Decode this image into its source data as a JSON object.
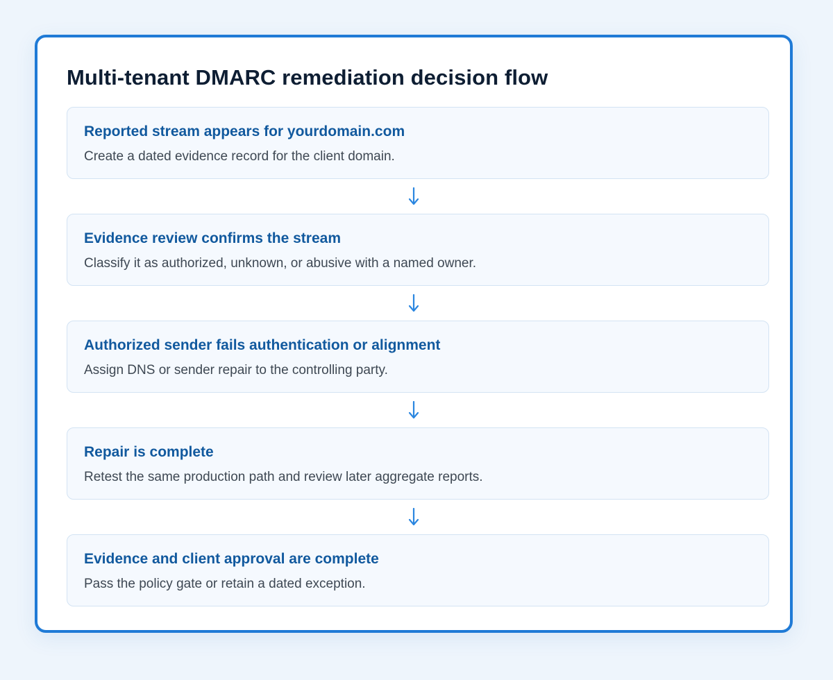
{
  "diagram": {
    "title": "Multi-tenant DMARC remediation decision flow",
    "steps": [
      {
        "title": "Reported stream appears for yourdomain.com",
        "description": "Create a dated evidence record for the client domain."
      },
      {
        "title": "Evidence review confirms the stream",
        "description": "Classify it as authorized, unknown, or abusive with a named owner."
      },
      {
        "title": "Authorized sender fails authentication or alignment",
        "description": "Assign DNS or sender repair to the controlling party."
      },
      {
        "title": "Repair is complete",
        "description": "Retest the same production path and review later aggregate reports."
      },
      {
        "title": "Evidence and client approval are complete",
        "description": "Pass the policy gate or retain a dated exception."
      }
    ],
    "colors": {
      "accent": "#1f7ad6",
      "step_title": "#11599e",
      "arrow": "#2a86e0"
    },
    "connector_icon": "arrow-down-icon"
  }
}
